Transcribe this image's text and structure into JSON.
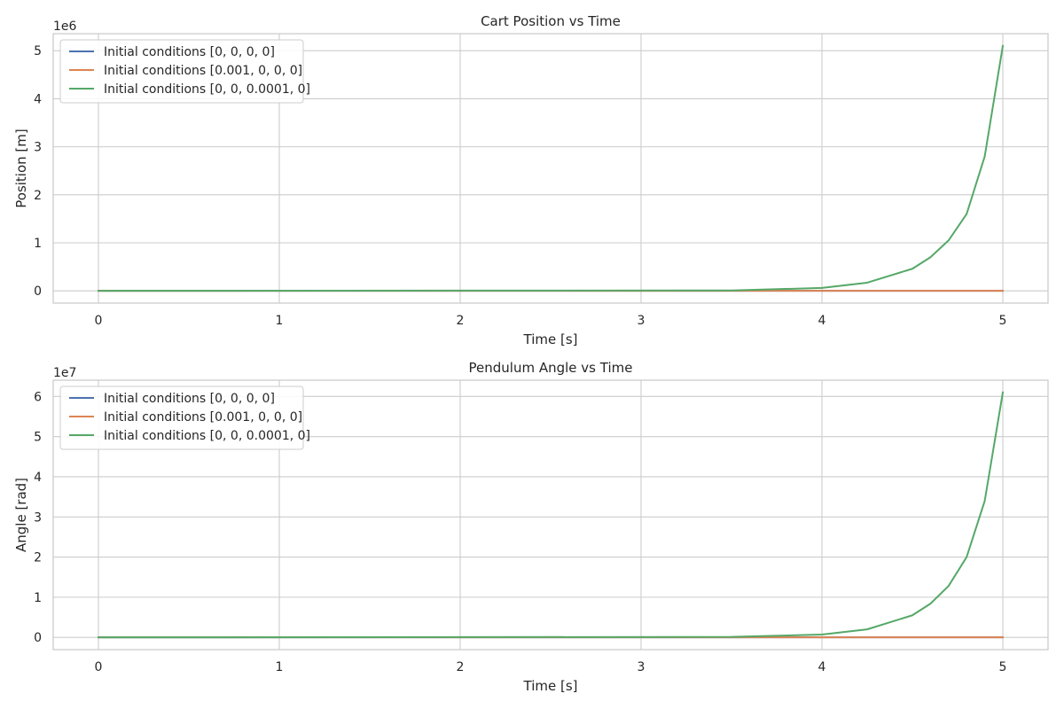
{
  "chart_data": [
    {
      "type": "line",
      "title": "Cart Position vs Time",
      "xlabel": "Time [s]",
      "ylabel": "Position [m]",
      "offset_label": "1e6",
      "xlim": [
        -0.25,
        5.25
      ],
      "ylim": [
        -0.255,
        5.355
      ],
      "xticks": [
        0,
        1,
        2,
        3,
        4,
        5
      ],
      "yticks": [
        0,
        1,
        2,
        3,
        4,
        5
      ],
      "grid": true,
      "legend_position": "upper-left",
      "series": [
        {
          "name": "Initial conditions [0, 0, 0, 0]",
          "color": "#4c72b0",
          "x": [
            0,
            5
          ],
          "y": [
            0,
            0
          ]
        },
        {
          "name": "Initial conditions [0.001, 0, 0, 0]",
          "color": "#dd8452",
          "x": [
            0,
            1,
            2,
            3,
            4,
            5
          ],
          "y": [
            0,
            0,
            0,
            0,
            0,
            0.0002
          ]
        },
        {
          "name": "Initial conditions [0, 0, 0.0001, 0]",
          "color": "#55a868",
          "x": [
            0,
            3.5,
            4,
            4.25,
            4.5,
            4.6,
            4.7,
            4.8,
            4.9,
            5
          ],
          "y": [
            0,
            0.009,
            0.06,
            0.17,
            0.46,
            0.7,
            1.05,
            1.6,
            2.8,
            5.1
          ]
        }
      ]
    },
    {
      "type": "line",
      "title": "Pendulum Angle vs Time",
      "xlabel": "Time [s]",
      "ylabel": "Angle [rad]",
      "offset_label": "1e7",
      "xlim": [
        -0.25,
        5.25
      ],
      "ylim": [
        -0.305,
        6.405
      ],
      "xticks": [
        0,
        1,
        2,
        3,
        4,
        5
      ],
      "yticks": [
        0,
        1,
        2,
        3,
        4,
        5,
        6
      ],
      "grid": true,
      "legend_position": "upper-left",
      "series": [
        {
          "name": "Initial conditions [0, 0, 0, 0]",
          "color": "#4c72b0",
          "x": [
            0,
            5
          ],
          "y": [
            0,
            0
          ]
        },
        {
          "name": "Initial conditions [0.001, 0, 0, 0]",
          "color": "#dd8452",
          "x": [
            0,
            1,
            2,
            3,
            4,
            5
          ],
          "y": [
            0,
            0,
            0,
            0,
            0,
            0.0002
          ]
        },
        {
          "name": "Initial conditions [0, 0, 0.0001, 0]",
          "color": "#55a868",
          "x": [
            0,
            3.5,
            4,
            4.25,
            4.5,
            4.6,
            4.7,
            4.8,
            4.9,
            5
          ],
          "y": [
            0,
            0.011,
            0.07,
            0.2,
            0.55,
            0.84,
            1.28,
            2.0,
            3.4,
            6.1
          ]
        }
      ]
    }
  ]
}
